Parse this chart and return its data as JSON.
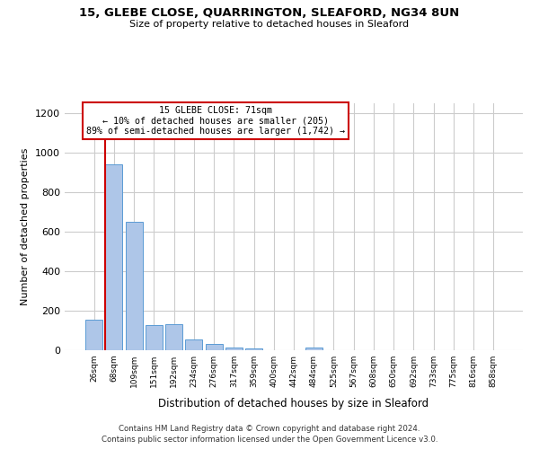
{
  "title_line1": "15, GLEBE CLOSE, QUARRINGTON, SLEAFORD, NG34 8UN",
  "title_line2": "Size of property relative to detached houses in Sleaford",
  "xlabel": "Distribution of detached houses by size in Sleaford",
  "ylabel": "Number of detached properties",
  "footnote1": "Contains HM Land Registry data © Crown copyright and database right 2024.",
  "footnote2": "Contains public sector information licensed under the Open Government Licence v3.0.",
  "annotation_line1": "15 GLEBE CLOSE: 71sqm",
  "annotation_line2": "← 10% of detached houses are smaller (205)",
  "annotation_line3": "89% of semi-detached houses are larger (1,742) →",
  "bar_color": "#aec6e8",
  "bar_edge_color": "#5b9bd5",
  "vline_color": "#cc0000",
  "categories": [
    "26sqm",
    "68sqm",
    "109sqm",
    "151sqm",
    "192sqm",
    "234sqm",
    "276sqm",
    "317sqm",
    "359sqm",
    "400sqm",
    "442sqm",
    "484sqm",
    "525sqm",
    "567sqm",
    "608sqm",
    "650sqm",
    "692sqm",
    "733sqm",
    "775sqm",
    "816sqm",
    "858sqm"
  ],
  "values": [
    155,
    940,
    648,
    128,
    130,
    55,
    30,
    15,
    10,
    0,
    0,
    12,
    0,
    0,
    0,
    0,
    0,
    0,
    0,
    0,
    0
  ],
  "ylim": [
    0,
    1250
  ],
  "yticks": [
    0,
    200,
    400,
    600,
    800,
    1000,
    1200
  ],
  "grid_color": "#cccccc",
  "background_color": "#ffffff",
  "annotation_box_color": "#ffffff",
  "annotation_box_edge_color": "#cc0000"
}
